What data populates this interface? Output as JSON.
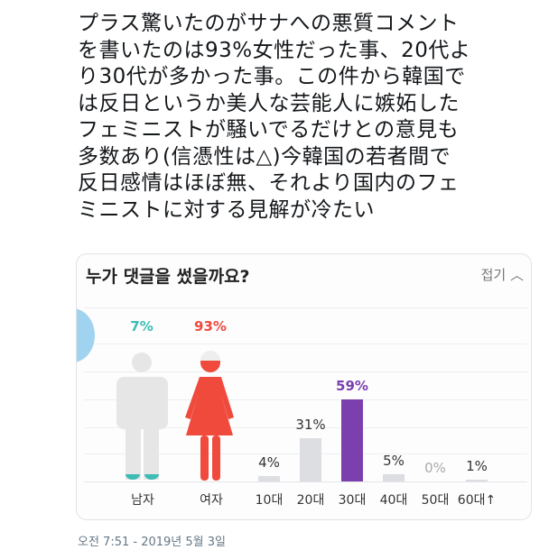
{
  "tweet": {
    "lines": [
      "プラス驚いたのがサナへの悪質コメント",
      "を書いたのは93%女性だった事、20代よ",
      "り30代が多かった事。この件から韓国で",
      "は反日というか美人な芸能人に嫉妬した",
      "フェミニストが騒いでるだけとの意見も",
      "多数あり(信憑性は△)今韓国の若者間で",
      "反日感情はほぼ無、それより国内のフェ",
      "ミニストに対する見解が冷たい"
    ],
    "timestamp": "오전 7:51 - 2019년 5월 3일"
  },
  "card": {
    "title": "누가 댓글을 썼을까요?",
    "fold_label": "접기",
    "fold_icon": "chevron-up-icon"
  },
  "chart_data": [
    {
      "type": "pictogram",
      "categories": [
        "남자",
        "여자"
      ],
      "values": [
        7,
        93
      ],
      "labels": [
        "7%",
        "93%"
      ],
      "colors": [
        "#3cbcb4",
        "#ef4a3c"
      ]
    },
    {
      "type": "bar",
      "categories": [
        "10대",
        "20대",
        "30대",
        "40대",
        "50대",
        "60대↑"
      ],
      "values": [
        4,
        31,
        59,
        5,
        0,
        1
      ],
      "labels": [
        "4%",
        "31%",
        "59%",
        "5%",
        "0%",
        "1%"
      ],
      "highlight": "30대",
      "colors": {
        "default": "#dcdee1",
        "highlight": "#7b3fae"
      }
    }
  ]
}
